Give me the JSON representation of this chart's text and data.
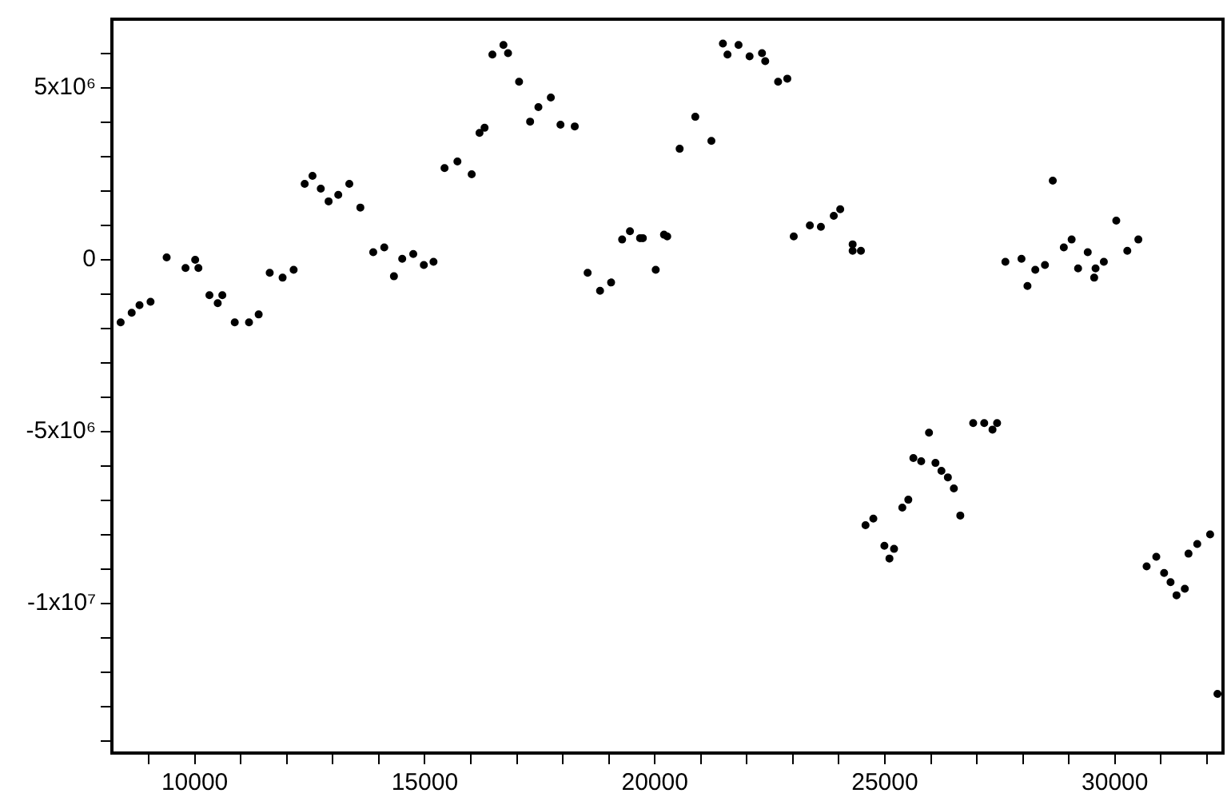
{
  "chart_data": {
    "type": "scatter",
    "marker": "circle",
    "grid": false,
    "legend": false,
    "xlim": [
      8200,
      32350
    ],
    "ylim": [
      -14350000,
      7000000
    ],
    "xticks": [
      {
        "value": 9000,
        "label": null
      },
      10000,
      {
        "value": 11000,
        "label": null
      },
      {
        "value": 12000,
        "label": null
      },
      {
        "value": 13000,
        "label": null
      },
      {
        "value": 14000,
        "label": null
      },
      15000,
      {
        "value": 16000,
        "label": null
      },
      {
        "value": 17000,
        "label": null
      },
      {
        "value": 18000,
        "label": null
      },
      {
        "value": 19000,
        "label": null
      },
      20000,
      {
        "value": 21000,
        "label": null
      },
      {
        "value": 22000,
        "label": null
      },
      {
        "value": 23000,
        "label": null
      },
      {
        "value": 24000,
        "label": null
      },
      25000,
      {
        "value": 26000,
        "label": null
      },
      {
        "value": 27000,
        "label": null
      },
      {
        "value": 28000,
        "label": null
      },
      {
        "value": 29000,
        "label": null
      },
      30000,
      {
        "value": 31000,
        "label": null
      },
      {
        "value": 32000,
        "label": null
      }
    ],
    "yticks": [
      {
        "value": -14000000,
        "label": null
      },
      {
        "value": -13000000,
        "label": null
      },
      {
        "value": -12000000,
        "label": null
      },
      {
        "value": -11000000,
        "label": null
      },
      {
        "value": -10000000,
        "label": "-1x10⁷"
      },
      {
        "value": -9000000,
        "label": null
      },
      {
        "value": -8000000,
        "label": null
      },
      {
        "value": -7000000,
        "label": null
      },
      {
        "value": -6000000,
        "label": null
      },
      {
        "value": -5000000,
        "label": "-5x10⁶"
      },
      {
        "value": -4000000,
        "label": null
      },
      {
        "value": -3000000,
        "label": null
      },
      {
        "value": -2000000,
        "label": null
      },
      {
        "value": -1000000,
        "label": null
      },
      0,
      {
        "value": 1000000,
        "label": null
      },
      {
        "value": 2000000,
        "label": null
      },
      {
        "value": 3000000,
        "label": null
      },
      {
        "value": 4000000,
        "label": null
      },
      {
        "value": 5000000,
        "label": "5x10⁶"
      },
      {
        "value": 6000000,
        "label": null
      }
    ],
    "series": [
      {
        "color": "#000000",
        "x": [
          8390,
          8630,
          8800,
          9040,
          9390,
          9800,
          10010,
          10080,
          10320,
          10500,
          10600,
          10870,
          11180,
          11390,
          11630,
          11910,
          12150,
          12390,
          12560,
          12740,
          12910,
          13120,
          13360,
          13600,
          13880,
          14120,
          14330,
          14510,
          14750,
          14980,
          15190,
          15430,
          15710,
          16020,
          16190,
          16300,
          16470,
          16710,
          16810,
          17050,
          17290,
          17470,
          17740,
          17950,
          18260,
          18540,
          18810,
          19050,
          19290,
          19460,
          19680,
          19740,
          20020,
          20200,
          20270,
          20540,
          20880,
          21230,
          21480,
          21580,
          21820,
          22060,
          22330,
          22400,
          22680,
          22880,
          23020,
          23370,
          23610,
          23890,
          24030,
          24300,
          24300,
          24480,
          24580,
          24750,
          24990,
          25100,
          25200,
          25380,
          25510,
          25620,
          25790,
          25960,
          26100,
          26230,
          26370,
          26500,
          26640,
          26920,
          27160,
          27340,
          27440,
          27620,
          27970,
          28100,
          28270,
          28480,
          28650,
          28890,
          29060,
          29200,
          29410,
          29550,
          29580,
          29760,
          30030,
          30270,
          30510,
          30690,
          30900,
          31070,
          31210,
          31340,
          31520,
          31600,
          31790,
          32070,
          32230
        ],
        "values": [
          -1820000,
          -1540000,
          -1320000,
          -1220000,
          70000,
          -240000,
          0,
          -240000,
          -1030000,
          -1260000,
          -1030000,
          -1820000,
          -1820000,
          -1590000,
          -380000,
          -520000,
          -290000,
          2210000,
          2440000,
          2070000,
          1700000,
          1890000,
          2210000,
          1520000,
          220000,
          360000,
          -480000,
          30000,
          170000,
          -150000,
          -60000,
          2670000,
          2860000,
          2490000,
          3690000,
          3840000,
          5970000,
          6250000,
          6010000,
          5180000,
          4020000,
          4440000,
          4720000,
          3930000,
          3880000,
          -380000,
          -900000,
          -660000,
          590000,
          830000,
          630000,
          630000,
          -290000,
          730000,
          680000,
          3230000,
          4160000,
          3460000,
          6290000,
          5970000,
          6250000,
          5920000,
          6010000,
          5780000,
          5180000,
          5270000,
          680000,
          1000000,
          960000,
          1280000,
          1470000,
          450000,
          260000,
          260000,
          -7720000,
          -7530000,
          -8320000,
          -8690000,
          -8410000,
          -7210000,
          -6980000,
          -5770000,
          -5860000,
          -5030000,
          -5910000,
          -6140000,
          -6330000,
          -6650000,
          -7440000,
          -4750000,
          -4750000,
          -4940000,
          -4750000,
          -60000,
          30000,
          -760000,
          -290000,
          -150000,
          2300000,
          360000,
          590000,
          -250000,
          220000,
          -520000,
          -250000,
          -60000,
          1140000,
          260000,
          590000,
          -8920000,
          -8640000,
          -9110000,
          -9380000,
          -9760000,
          -9570000,
          -8550000,
          -8270000,
          -7990000,
          -12630000
        ]
      }
    ]
  }
}
